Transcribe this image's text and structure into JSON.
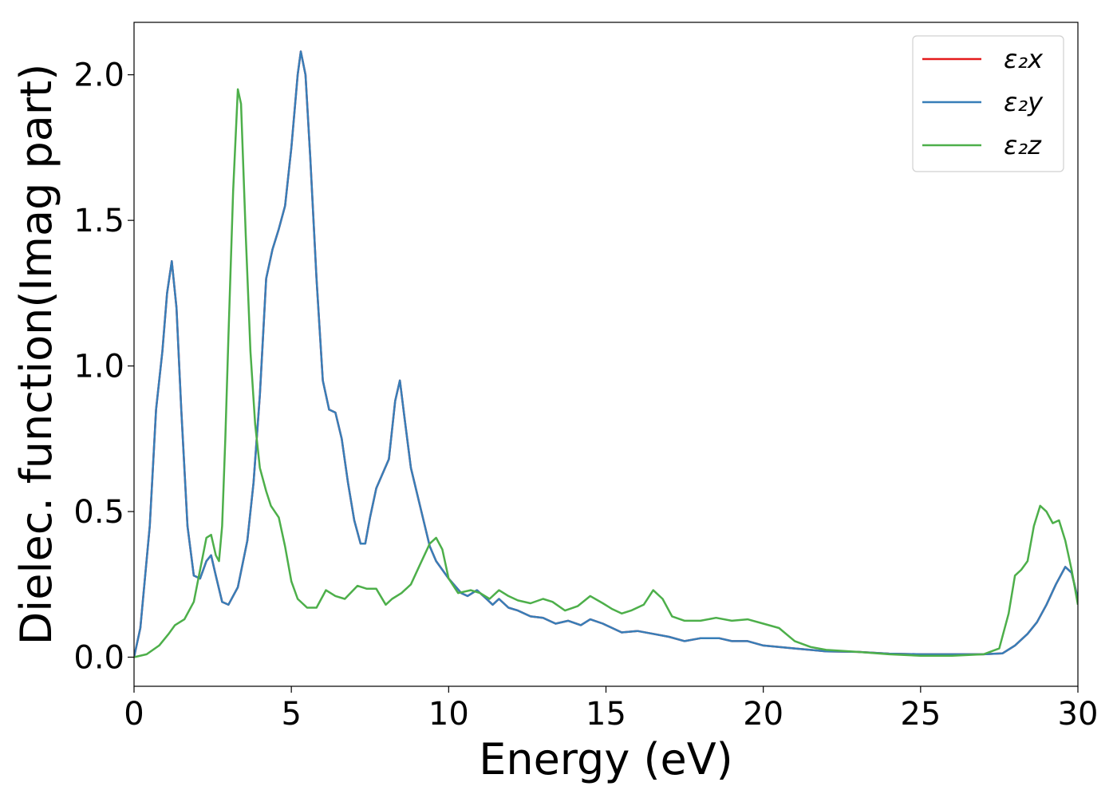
{
  "chart_data": {
    "type": "line",
    "title": "",
    "xlabel": "Energy (eV)",
    "ylabel": "Dielec. function(Imag part)",
    "xlim": [
      0,
      30
    ],
    "ylim": [
      -0.1,
      2.18
    ],
    "xticks": [
      0,
      5,
      10,
      15,
      20,
      25,
      30
    ],
    "yticks": [
      0.0,
      0.5,
      1.0,
      1.5,
      2.0
    ],
    "xtick_labels": [
      "0",
      "5",
      "10",
      "15",
      "20",
      "25",
      "30"
    ],
    "ytick_labels": [
      "0.0",
      "0.5",
      "1.0",
      "1.5",
      "2.0"
    ],
    "grid": false,
    "legend_position": "top-right",
    "series": [
      {
        "name": "ε₂x",
        "color": "#e41a1c",
        "points": [
          [
            0,
            0
          ],
          [
            0.2,
            0.1
          ],
          [
            0.5,
            0.45
          ],
          [
            0.7,
            0.85
          ],
          [
            0.9,
            1.05
          ],
          [
            1.05,
            1.25
          ],
          [
            1.2,
            1.36
          ],
          [
            1.35,
            1.2
          ],
          [
            1.5,
            0.85
          ],
          [
            1.7,
            0.45
          ],
          [
            1.9,
            0.28
          ],
          [
            2.1,
            0.27
          ],
          [
            2.3,
            0.33
          ],
          [
            2.45,
            0.35
          ],
          [
            2.6,
            0.28
          ],
          [
            2.8,
            0.19
          ],
          [
            3.0,
            0.18
          ],
          [
            3.3,
            0.24
          ],
          [
            3.6,
            0.4
          ],
          [
            3.8,
            0.6
          ],
          [
            4.0,
            0.9
          ],
          [
            4.2,
            1.3
          ],
          [
            4.4,
            1.4
          ],
          [
            4.6,
            1.47
          ],
          [
            4.8,
            1.55
          ],
          [
            5.0,
            1.75
          ],
          [
            5.2,
            2.0
          ],
          [
            5.3,
            2.08
          ],
          [
            5.45,
            2.0
          ],
          [
            5.6,
            1.72
          ],
          [
            5.8,
            1.3
          ],
          [
            6.0,
            0.95
          ],
          [
            6.2,
            0.85
          ],
          [
            6.4,
            0.84
          ],
          [
            6.6,
            0.75
          ],
          [
            6.8,
            0.6
          ],
          [
            7.0,
            0.47
          ],
          [
            7.2,
            0.39
          ],
          [
            7.35,
            0.39
          ],
          [
            7.5,
            0.48
          ],
          [
            7.7,
            0.58
          ],
          [
            7.9,
            0.63
          ],
          [
            8.1,
            0.68
          ],
          [
            8.3,
            0.88
          ],
          [
            8.45,
            0.95
          ],
          [
            8.6,
            0.82
          ],
          [
            8.8,
            0.65
          ],
          [
            9.0,
            0.56
          ],
          [
            9.2,
            0.47
          ],
          [
            9.4,
            0.38
          ],
          [
            9.6,
            0.33
          ],
          [
            10.0,
            0.27
          ],
          [
            10.4,
            0.22
          ],
          [
            10.6,
            0.21
          ],
          [
            10.9,
            0.23
          ],
          [
            11.2,
            0.2
          ],
          [
            11.4,
            0.18
          ],
          [
            11.6,
            0.2
          ],
          [
            11.9,
            0.17
          ],
          [
            12.2,
            0.16
          ],
          [
            12.6,
            0.14
          ],
          [
            13.0,
            0.135
          ],
          [
            13.4,
            0.115
          ],
          [
            13.8,
            0.125
          ],
          [
            14.2,
            0.11
          ],
          [
            14.5,
            0.13
          ],
          [
            14.9,
            0.115
          ],
          [
            15.5,
            0.085
          ],
          [
            16.0,
            0.09
          ],
          [
            16.5,
            0.08
          ],
          [
            17.0,
            0.07
          ],
          [
            17.5,
            0.055
          ],
          [
            18.0,
            0.065
          ],
          [
            18.6,
            0.065
          ],
          [
            19.0,
            0.055
          ],
          [
            19.5,
            0.055
          ],
          [
            20.0,
            0.04
          ],
          [
            21.0,
            0.03
          ],
          [
            22.0,
            0.02
          ],
          [
            23.0,
            0.018
          ],
          [
            24.0,
            0.012
          ],
          [
            25.0,
            0.01
          ],
          [
            26.0,
            0.01
          ],
          [
            27.0,
            0.01
          ],
          [
            27.6,
            0.013
          ],
          [
            28.0,
            0.04
          ],
          [
            28.4,
            0.08
          ],
          [
            28.7,
            0.12
          ],
          [
            29.0,
            0.18
          ],
          [
            29.3,
            0.25
          ],
          [
            29.6,
            0.31
          ],
          [
            29.8,
            0.29
          ],
          [
            30.0,
            0.2
          ]
        ]
      },
      {
        "name": "ε₂y",
        "color": "#377eb8",
        "points": [
          [
            0,
            0
          ],
          [
            0.2,
            0.1
          ],
          [
            0.5,
            0.45
          ],
          [
            0.7,
            0.85
          ],
          [
            0.9,
            1.05
          ],
          [
            1.05,
            1.25
          ],
          [
            1.2,
            1.36
          ],
          [
            1.35,
            1.2
          ],
          [
            1.5,
            0.85
          ],
          [
            1.7,
            0.45
          ],
          [
            1.9,
            0.28
          ],
          [
            2.1,
            0.27
          ],
          [
            2.3,
            0.33
          ],
          [
            2.45,
            0.35
          ],
          [
            2.6,
            0.28
          ],
          [
            2.8,
            0.19
          ],
          [
            3.0,
            0.18
          ],
          [
            3.3,
            0.24
          ],
          [
            3.6,
            0.4
          ],
          [
            3.8,
            0.6
          ],
          [
            4.0,
            0.9
          ],
          [
            4.2,
            1.3
          ],
          [
            4.4,
            1.4
          ],
          [
            4.6,
            1.47
          ],
          [
            4.8,
            1.55
          ],
          [
            5.0,
            1.75
          ],
          [
            5.2,
            2.0
          ],
          [
            5.3,
            2.08
          ],
          [
            5.45,
            2.0
          ],
          [
            5.6,
            1.72
          ],
          [
            5.8,
            1.3
          ],
          [
            6.0,
            0.95
          ],
          [
            6.2,
            0.85
          ],
          [
            6.4,
            0.84
          ],
          [
            6.6,
            0.75
          ],
          [
            6.8,
            0.6
          ],
          [
            7.0,
            0.47
          ],
          [
            7.2,
            0.39
          ],
          [
            7.35,
            0.39
          ],
          [
            7.5,
            0.48
          ],
          [
            7.7,
            0.58
          ],
          [
            7.9,
            0.63
          ],
          [
            8.1,
            0.68
          ],
          [
            8.3,
            0.88
          ],
          [
            8.45,
            0.95
          ],
          [
            8.6,
            0.82
          ],
          [
            8.8,
            0.65
          ],
          [
            9.0,
            0.56
          ],
          [
            9.2,
            0.47
          ],
          [
            9.4,
            0.38
          ],
          [
            9.6,
            0.33
          ],
          [
            10.0,
            0.27
          ],
          [
            10.4,
            0.22
          ],
          [
            10.6,
            0.21
          ],
          [
            10.9,
            0.23
          ],
          [
            11.2,
            0.2
          ],
          [
            11.4,
            0.18
          ],
          [
            11.6,
            0.2
          ],
          [
            11.9,
            0.17
          ],
          [
            12.2,
            0.16
          ],
          [
            12.6,
            0.14
          ],
          [
            13.0,
            0.135
          ],
          [
            13.4,
            0.115
          ],
          [
            13.8,
            0.125
          ],
          [
            14.2,
            0.11
          ],
          [
            14.5,
            0.13
          ],
          [
            14.9,
            0.115
          ],
          [
            15.5,
            0.085
          ],
          [
            16.0,
            0.09
          ],
          [
            16.5,
            0.08
          ],
          [
            17.0,
            0.07
          ],
          [
            17.5,
            0.055
          ],
          [
            18.0,
            0.065
          ],
          [
            18.6,
            0.065
          ],
          [
            19.0,
            0.055
          ],
          [
            19.5,
            0.055
          ],
          [
            20.0,
            0.04
          ],
          [
            21.0,
            0.03
          ],
          [
            22.0,
            0.02
          ],
          [
            23.0,
            0.018
          ],
          [
            24.0,
            0.012
          ],
          [
            25.0,
            0.01
          ],
          [
            26.0,
            0.01
          ],
          [
            27.0,
            0.01
          ],
          [
            27.6,
            0.013
          ],
          [
            28.0,
            0.04
          ],
          [
            28.4,
            0.08
          ],
          [
            28.7,
            0.12
          ],
          [
            29.0,
            0.18
          ],
          [
            29.3,
            0.25
          ],
          [
            29.6,
            0.31
          ],
          [
            29.8,
            0.29
          ],
          [
            30.0,
            0.2
          ]
        ]
      },
      {
        "name": "ε₂z",
        "color": "#4daf4a",
        "points": [
          [
            0,
            0
          ],
          [
            0.4,
            0.01
          ],
          [
            0.8,
            0.04
          ],
          [
            1.1,
            0.08
          ],
          [
            1.3,
            0.11
          ],
          [
            1.6,
            0.13
          ],
          [
            1.9,
            0.19
          ],
          [
            2.1,
            0.3
          ],
          [
            2.3,
            0.41
          ],
          [
            2.45,
            0.42
          ],
          [
            2.6,
            0.35
          ],
          [
            2.7,
            0.33
          ],
          [
            2.8,
            0.45
          ],
          [
            2.9,
            0.75
          ],
          [
            3.0,
            1.1
          ],
          [
            3.15,
            1.6
          ],
          [
            3.3,
            1.95
          ],
          [
            3.4,
            1.9
          ],
          [
            3.55,
            1.45
          ],
          [
            3.7,
            1.05
          ],
          [
            3.85,
            0.8
          ],
          [
            4.0,
            0.65
          ],
          [
            4.2,
            0.57
          ],
          [
            4.35,
            0.52
          ],
          [
            4.6,
            0.48
          ],
          [
            4.8,
            0.38
          ],
          [
            5.0,
            0.26
          ],
          [
            5.2,
            0.2
          ],
          [
            5.5,
            0.17
          ],
          [
            5.8,
            0.17
          ],
          [
            6.1,
            0.23
          ],
          [
            6.4,
            0.21
          ],
          [
            6.7,
            0.2
          ],
          [
            7.1,
            0.245
          ],
          [
            7.4,
            0.235
          ],
          [
            7.7,
            0.235
          ],
          [
            8.0,
            0.18
          ],
          [
            8.2,
            0.2
          ],
          [
            8.5,
            0.22
          ],
          [
            8.8,
            0.25
          ],
          [
            9.1,
            0.32
          ],
          [
            9.4,
            0.39
          ],
          [
            9.6,
            0.41
          ],
          [
            9.8,
            0.37
          ],
          [
            10.0,
            0.27
          ],
          [
            10.3,
            0.22
          ],
          [
            10.7,
            0.23
          ],
          [
            11.0,
            0.22
          ],
          [
            11.3,
            0.2
          ],
          [
            11.6,
            0.23
          ],
          [
            11.9,
            0.21
          ],
          [
            12.2,
            0.195
          ],
          [
            12.6,
            0.185
          ],
          [
            13.0,
            0.2
          ],
          [
            13.3,
            0.19
          ],
          [
            13.7,
            0.16
          ],
          [
            14.1,
            0.175
          ],
          [
            14.5,
            0.21
          ],
          [
            14.9,
            0.185
          ],
          [
            15.2,
            0.165
          ],
          [
            15.5,
            0.15
          ],
          [
            15.8,
            0.16
          ],
          [
            16.2,
            0.18
          ],
          [
            16.5,
            0.23
          ],
          [
            16.8,
            0.2
          ],
          [
            17.1,
            0.14
          ],
          [
            17.5,
            0.125
          ],
          [
            18.0,
            0.125
          ],
          [
            18.5,
            0.135
          ],
          [
            19.0,
            0.125
          ],
          [
            19.5,
            0.13
          ],
          [
            20.0,
            0.115
          ],
          [
            20.5,
            0.1
          ],
          [
            21.0,
            0.055
          ],
          [
            21.5,
            0.035
          ],
          [
            22.0,
            0.025
          ],
          [
            23.0,
            0.018
          ],
          [
            24.0,
            0.01
          ],
          [
            25.0,
            0.005
          ],
          [
            26.0,
            0.005
          ],
          [
            27.0,
            0.01
          ],
          [
            27.5,
            0.03
          ],
          [
            27.8,
            0.15
          ],
          [
            28.0,
            0.28
          ],
          [
            28.2,
            0.3
          ],
          [
            28.4,
            0.33
          ],
          [
            28.6,
            0.45
          ],
          [
            28.8,
            0.52
          ],
          [
            29.0,
            0.5
          ],
          [
            29.2,
            0.46
          ],
          [
            29.4,
            0.47
          ],
          [
            29.6,
            0.4
          ],
          [
            29.8,
            0.3
          ],
          [
            30.0,
            0.18
          ]
        ]
      }
    ]
  }
}
